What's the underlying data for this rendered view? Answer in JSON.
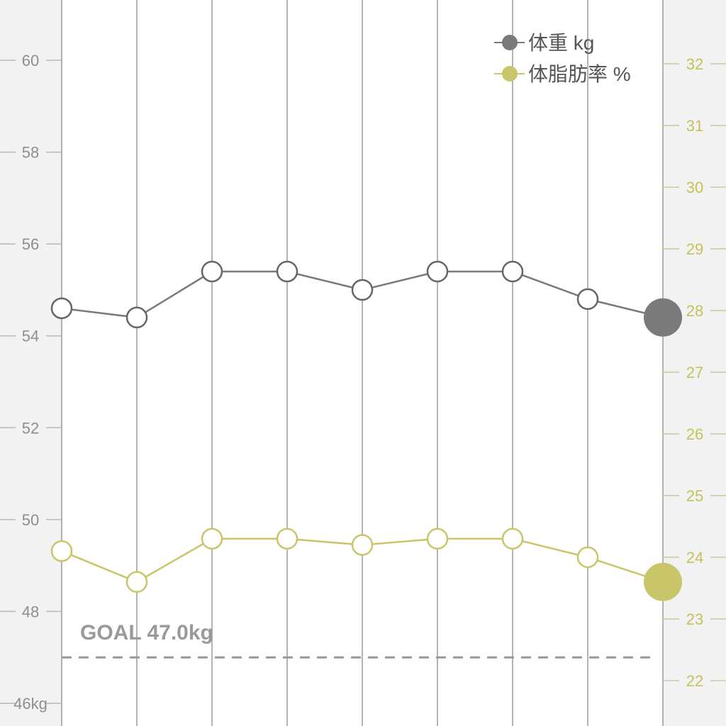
{
  "colors": {
    "weight": "#7a7a7a",
    "body_fat": "#c9c66a",
    "goal_line": "#999999",
    "grid": "#9a9a9a",
    "plot_bg": "#ffffff",
    "outer_bg": "#f2f2f2",
    "right_ticks": "#c3c25b"
  },
  "legend": {
    "items": [
      {
        "label": "体重 kg",
        "series": "weight"
      },
      {
        "label": "体脂肪率 %",
        "series": "body_fat"
      }
    ],
    "placement": "top-right"
  },
  "goal": {
    "label": "GOAL 47.0kg",
    "value": 47.0
  },
  "chart_data": {
    "type": "line",
    "x": [
      1,
      2,
      3,
      4,
      5,
      6,
      7,
      8,
      9
    ],
    "y_left": {
      "ylim": [
        46,
        61.2
      ],
      "ticks": [
        46,
        48,
        50,
        52,
        54,
        56,
        58,
        60
      ],
      "tick_labels": [
        "46kg",
        "48",
        "50",
        "52",
        "54",
        "56",
        "58",
        "60"
      ]
    },
    "y_right": {
      "ylim": [
        21.8,
        33.1
      ],
      "ticks": [
        22,
        23,
        24,
        25,
        26,
        27,
        28,
        29,
        30,
        31,
        32
      ],
      "tick_labels": [
        "22",
        "23",
        "24",
        "25",
        "26",
        "27",
        "28",
        "29",
        "30",
        "31",
        "32"
      ]
    },
    "series": [
      {
        "name": "体重 kg",
        "key": "weight",
        "axis": "left",
        "values": [
          54.6,
          54.4,
          55.4,
          55.4,
          55.0,
          55.4,
          55.4,
          54.8,
          54.4
        ]
      },
      {
        "name": "体脂肪率 %",
        "key": "body_fat",
        "axis": "right",
        "values": [
          24.1,
          23.6,
          24.3,
          24.3,
          24.2,
          24.3,
          24.3,
          24.0,
          23.6
        ]
      }
    ],
    "goal_line": 47.0,
    "grid": "vertical",
    "last_point_highlighted": true
  }
}
